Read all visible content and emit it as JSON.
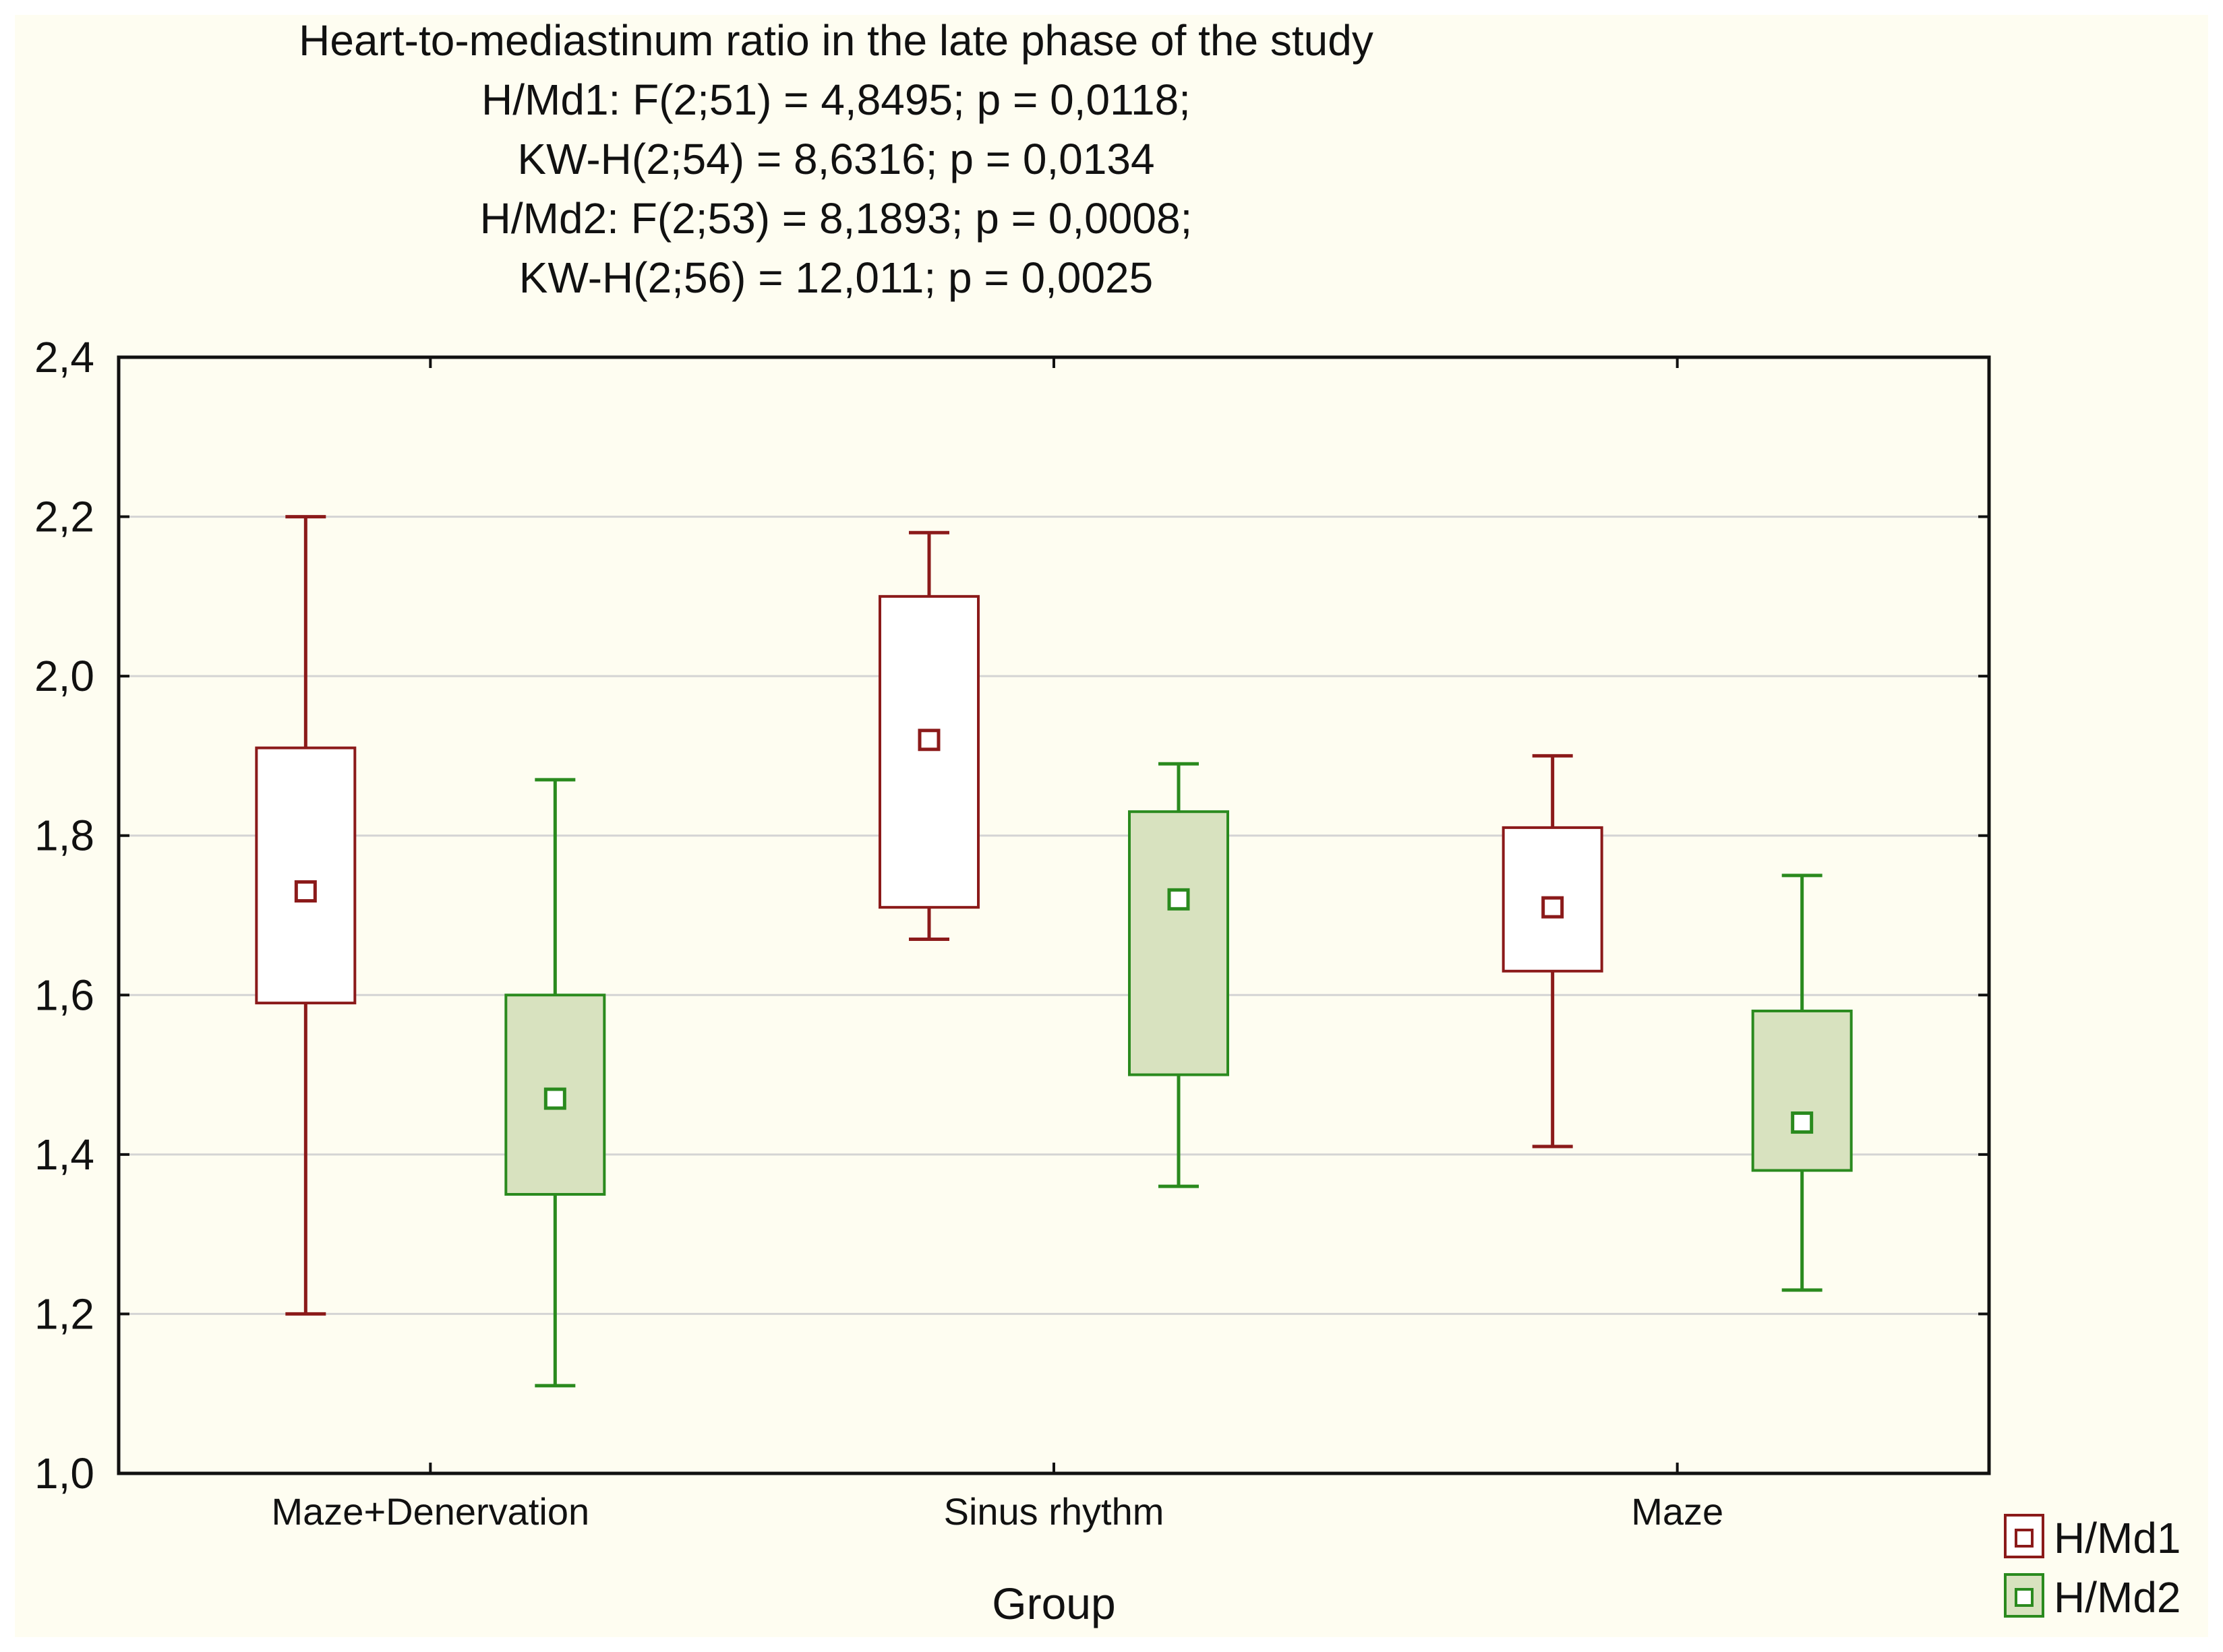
{
  "chart_data": {
    "type": "boxplot",
    "title_lines": [
      "Heart-to-mediastinum ratio in the late phase of the study",
      "H/Md1:   F(2;51) = 4,8495; p = 0,0118;",
      "KW-H(2;54) = 8,6316; p = 0,0134",
      "H/Md2:   F(2;53) = 8,1893; p = 0,0008;",
      "KW-H(2;56) = 12,011; p = 0,0025"
    ],
    "xlabel": "Group",
    "ylabel": "",
    "ylim": [
      1.0,
      2.4
    ],
    "yticks": [
      1.0,
      1.2,
      1.4,
      1.6,
      1.8,
      2.0,
      2.2,
      2.4
    ],
    "ytick_labels": [
      "1,0",
      "1,2",
      "1,4",
      "1,6",
      "1,8",
      "2,0",
      "2,2",
      "2,4"
    ],
    "categories": [
      "Maze+Denervation",
      "Sinus rhythm",
      "Maze"
    ],
    "grid": true,
    "legend_position": "bottom-right",
    "series": [
      {
        "name": "H/Md1",
        "color": "#8b1a1a",
        "fill": "#ffffff",
        "boxes": [
          {
            "whisker_low": 1.2,
            "box_low": 1.59,
            "center": 1.73,
            "box_high": 1.91,
            "whisker_high": 2.2
          },
          {
            "whisker_low": 1.67,
            "box_low": 1.71,
            "center": 1.92,
            "box_high": 2.1,
            "whisker_high": 2.18
          },
          {
            "whisker_low": 1.41,
            "box_low": 1.63,
            "center": 1.71,
            "box_high": 1.81,
            "whisker_high": 1.9
          }
        ]
      },
      {
        "name": "H/Md2",
        "color": "#2a8a1e",
        "fill": "#d8e2bf",
        "boxes": [
          {
            "whisker_low": 1.11,
            "box_low": 1.35,
            "center": 1.47,
            "box_high": 1.6,
            "whisker_high": 1.87
          },
          {
            "whisker_low": 1.36,
            "box_low": 1.5,
            "center": 1.72,
            "box_high": 1.83,
            "whisker_high": 1.89
          },
          {
            "whisker_low": 1.23,
            "box_low": 1.38,
            "center": 1.44,
            "box_high": 1.58,
            "whisker_high": 1.75
          }
        ]
      }
    ],
    "axis_color": "#111111",
    "grid_color": "#d4d4d4"
  }
}
